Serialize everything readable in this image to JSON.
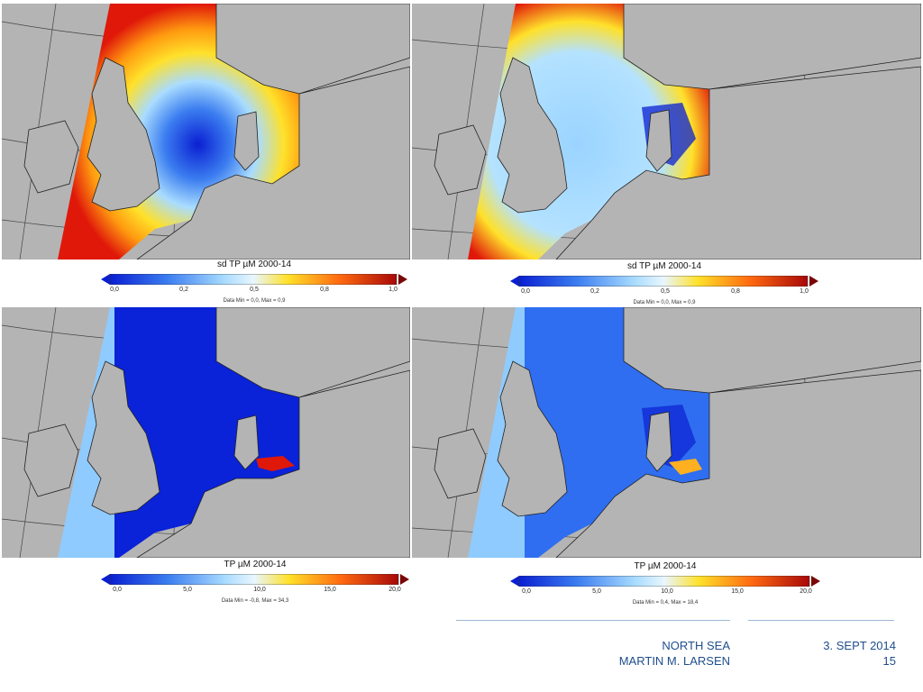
{
  "maps": [
    {
      "colorbar": {
        "title": "sd TP µM 2000-14",
        "ticks": [
          "0,0",
          "0,2",
          "0,5",
          "0,8",
          "1,0"
        ],
        "note": "Data Min = 0,0, Max = 0,9"
      }
    },
    {
      "colorbar": {
        "title": "sd TP µM 2000-14",
        "ticks": [
          "0,0",
          "0,2",
          "0,5",
          "0,8",
          "1,0"
        ],
        "note": "Data Min = 0,0, Max = 0,9"
      }
    },
    {
      "colorbar": {
        "title": "TP µM 2000-14",
        "ticks": [
          "0,0",
          "5,0",
          "10,0",
          "15,0",
          "20,0"
        ],
        "note": "Data Min = -0,8, Max = 34,3"
      }
    },
    {
      "colorbar": {
        "title": "TP µM 2000-14",
        "ticks": [
          "0,0",
          "5,0",
          "10,0",
          "15,0",
          "20,0"
        ],
        "note": "Data Min = 0,4, Max = 18,4"
      }
    }
  ],
  "footer": {
    "topic": "NORTH SEA",
    "author": "MARTIN M. LARSEN",
    "date": "3. SEPT 2014",
    "page": "15"
  },
  "colors": {
    "land": "#b4b4b4",
    "deep_blue": "#0a1fd2",
    "mid_blue": "#2f6ef0",
    "light_blue": "#a9dcff",
    "yellow": "#ffe12a",
    "red": "#e0180a",
    "footer_text": "#1f4e8c"
  }
}
